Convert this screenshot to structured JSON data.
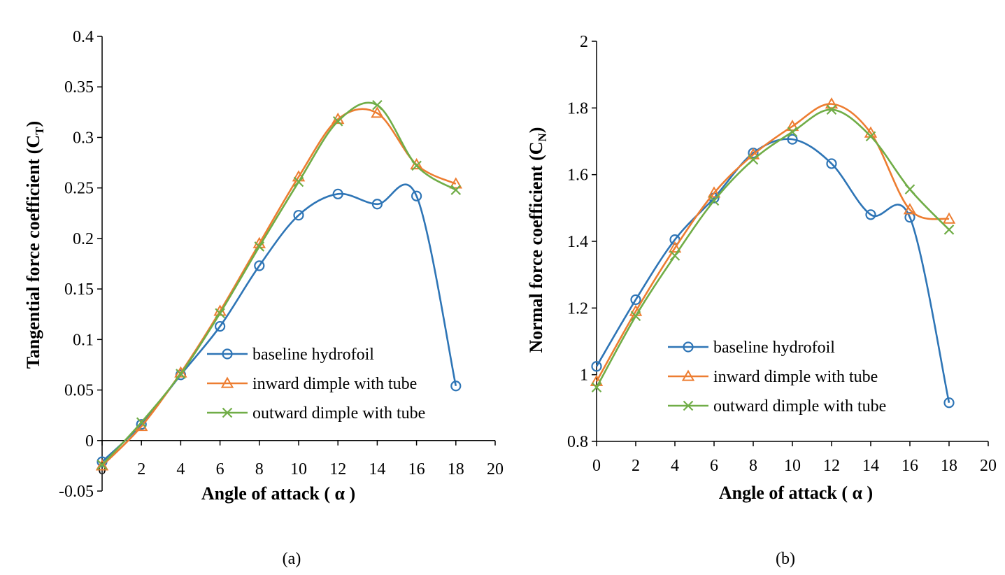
{
  "chart_data": [
    {
      "type": "line",
      "panel_label": "(a)",
      "xlabel": "Angle of attack ( α )",
      "ylabel": "Tangential force coefficient (C",
      "ylabel_sub": "T",
      "ylabel_close": ")",
      "xlim": [
        0,
        20
      ],
      "ylim": [
        -0.05,
        0.4
      ],
      "xticks": [
        0,
        2,
        4,
        6,
        8,
        10,
        12,
        14,
        16,
        18,
        20
      ],
      "xtick_labels": [
        "0",
        "2",
        "4",
        "6",
        "8",
        "10",
        "12",
        "14",
        "16",
        "18",
        "20"
      ],
      "yticks": [
        -0.05,
        0,
        0.05,
        0.1,
        0.15,
        0.2,
        0.25,
        0.3,
        0.35,
        0.4
      ],
      "ytick_labels": [
        "-0.05",
        "0",
        "0.05",
        "0.1",
        "0.15",
        "0.2",
        "0.25",
        "0.3",
        "0.35",
        "0.4"
      ],
      "grid": false,
      "legend_position": "lower-right",
      "x": [
        0,
        2,
        4,
        6,
        8,
        10,
        12,
        14,
        16,
        18
      ],
      "series": [
        {
          "name": "baseline hydrofoil",
          "color": "#2E75B6",
          "marker": "circle",
          "values": [
            -0.021,
            0.016,
            0.065,
            0.113,
            0.173,
            0.223,
            0.244,
            0.234,
            0.242,
            0.054
          ]
        },
        {
          "name": "inward dimple with tube",
          "color": "#ED7D31",
          "marker": "triangle",
          "values": [
            -0.025,
            0.014,
            0.067,
            0.128,
            0.195,
            0.261,
            0.318,
            0.324,
            0.273,
            0.254
          ]
        },
        {
          "name": "outward dimple with tube",
          "color": "#70AD47",
          "marker": "x",
          "values": [
            -0.024,
            0.018,
            0.066,
            0.126,
            0.192,
            0.256,
            0.316,
            0.332,
            0.272,
            0.248
          ]
        }
      ]
    },
    {
      "type": "line",
      "panel_label": "(b)",
      "xlabel": "Angle of attack ( α )",
      "ylabel": "Normal force coefficient (C",
      "ylabel_sub": "N",
      "ylabel_close": ")",
      "xlim": [
        0,
        20
      ],
      "ylim": [
        0.8,
        2
      ],
      "xticks": [
        0,
        2,
        4,
        6,
        8,
        10,
        12,
        14,
        16,
        18,
        20
      ],
      "xtick_labels": [
        "0",
        "2",
        "4",
        "6",
        "8",
        "10",
        "12",
        "14",
        "16",
        "18",
        "20"
      ],
      "yticks": [
        0.8,
        1,
        1.2,
        1.4,
        1.6,
        1.8,
        2
      ],
      "ytick_labels": [
        "0.8",
        "1",
        "1.2",
        "1.4",
        "1.6",
        "1.8",
        "2"
      ],
      "grid": false,
      "legend_position": "lower-center",
      "x": [
        0,
        2,
        4,
        6,
        8,
        10,
        12,
        14,
        16,
        18
      ],
      "series": [
        {
          "name": "baseline hydrofoil",
          "color": "#2E75B6",
          "marker": "circle",
          "values": [
            1.025,
            1.225,
            1.405,
            1.53,
            1.665,
            1.706,
            1.633,
            1.48,
            1.472,
            0.916
          ]
        },
        {
          "name": "inward dimple with tube",
          "color": "#ED7D31",
          "marker": "triangle",
          "values": [
            0.98,
            1.19,
            1.38,
            1.545,
            1.66,
            1.745,
            1.812,
            1.725,
            1.495,
            1.467
          ]
        },
        {
          "name": "outward dimple with tube",
          "color": "#70AD47",
          "marker": "x",
          "values": [
            0.962,
            1.176,
            1.357,
            1.522,
            1.645,
            1.728,
            1.795,
            1.715,
            1.556,
            1.435
          ]
        }
      ]
    }
  ]
}
